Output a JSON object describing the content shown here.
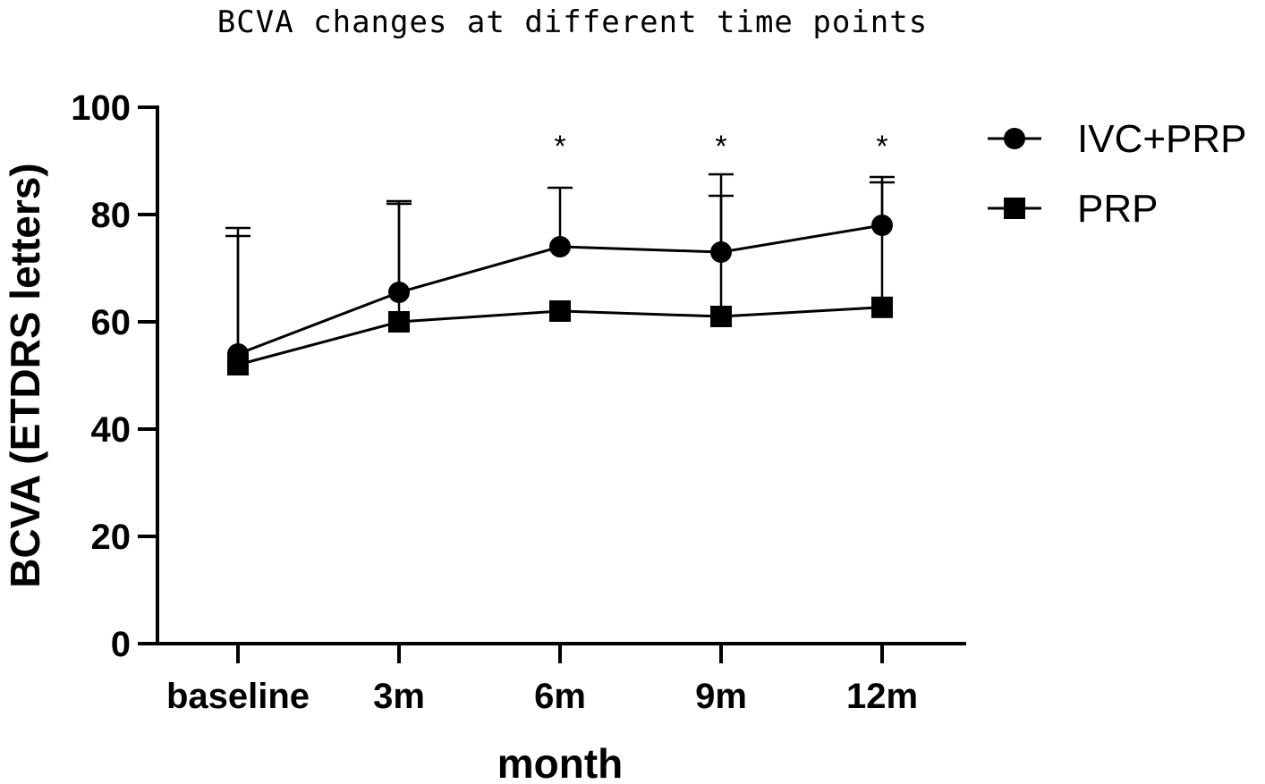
{
  "chart_data": {
    "type": "line",
    "title": "BCVA changes at different time points",
    "xlabel": "month",
    "ylabel": "BCVA (ETDRS letters)",
    "categories": [
      "baseline",
      "3m",
      "6m",
      "9m",
      "12m"
    ],
    "ylim": [
      0,
      100
    ],
    "yticks": [
      0,
      20,
      40,
      60,
      80,
      100
    ],
    "grid": false,
    "legend_position": "top-right",
    "series": [
      {
        "name": "IVC+PRP",
        "marker": "circle",
        "values": [
          54,
          65.5,
          74,
          73,
          78
        ],
        "error_upper": [
          77.5,
          82.5,
          85,
          87.5,
          87
        ]
      },
      {
        "name": "PRP",
        "marker": "square",
        "values": [
          52,
          60,
          62,
          61,
          62.7
        ],
        "error_upper": [
          76,
          82,
          62,
          83.5,
          86
        ]
      }
    ],
    "annotations": [
      {
        "category": "6m",
        "text": "*"
      },
      {
        "category": "9m",
        "text": "*"
      },
      {
        "category": "12m",
        "text": "*"
      }
    ]
  },
  "colors": {
    "ink": "#000000",
    "background": "#ffffff"
  }
}
